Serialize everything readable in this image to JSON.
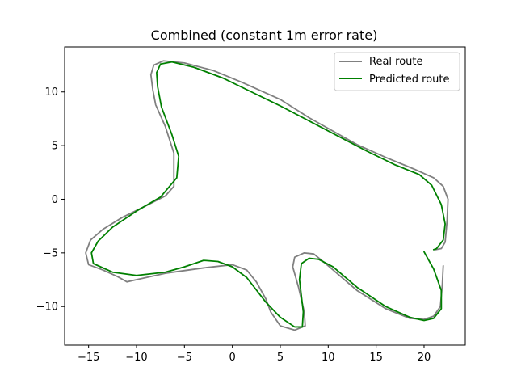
{
  "chart_data": {
    "type": "line",
    "title": "Combined (constant 1m error rate)",
    "xlabel": "",
    "ylabel": "",
    "xlim": [
      -17.5,
      24.3
    ],
    "ylim": [
      -13.6,
      14.2
    ],
    "xticks": [
      -15,
      -10,
      -5,
      0,
      5,
      10,
      15,
      20
    ],
    "yticks": [
      -10,
      -5,
      0,
      5,
      10
    ],
    "grid": false,
    "legend": "top-right",
    "series": [
      {
        "name": "Real route",
        "color": "#808080",
        "points": [
          [
            22.0,
            -6.2
          ],
          [
            21.9,
            -8.0
          ],
          [
            21.7,
            -10.0
          ],
          [
            21.0,
            -10.9
          ],
          [
            20.0,
            -11.2
          ],
          [
            18.5,
            -11.1
          ],
          [
            16.0,
            -10.2
          ],
          [
            13.0,
            -8.5
          ],
          [
            10.0,
            -6.2
          ],
          [
            8.5,
            -5.1
          ],
          [
            7.5,
            -5.0
          ],
          [
            6.5,
            -5.4
          ],
          [
            6.3,
            -6.3
          ],
          [
            6.9,
            -8.2
          ],
          [
            7.5,
            -10.5
          ],
          [
            7.6,
            -11.8
          ],
          [
            6.5,
            -12.2
          ],
          [
            5.0,
            -11.8
          ],
          [
            4.0,
            -10.5
          ],
          [
            3.5,
            -9.3
          ],
          [
            2.5,
            -7.7
          ],
          [
            1.5,
            -6.6
          ],
          [
            0.0,
            -6.1
          ],
          [
            -3.0,
            -6.4
          ],
          [
            -7.0,
            -6.9
          ],
          [
            -10.0,
            -7.5
          ],
          [
            -11.0,
            -7.7
          ],
          [
            -12.0,
            -7.2
          ],
          [
            -13.5,
            -6.6
          ],
          [
            -15.0,
            -6.1
          ],
          [
            -15.3,
            -5.0
          ],
          [
            -14.8,
            -3.8
          ],
          [
            -13.5,
            -2.8
          ],
          [
            -11.5,
            -1.7
          ],
          [
            -9.0,
            -0.6
          ],
          [
            -7.0,
            0.3
          ],
          [
            -6.1,
            1.2
          ],
          [
            -6.1,
            4.3
          ],
          [
            -7.0,
            6.8
          ],
          [
            -8.0,
            8.8
          ],
          [
            -8.3,
            10.2
          ],
          [
            -8.5,
            11.6
          ],
          [
            -8.2,
            12.5
          ],
          [
            -7.2,
            12.9
          ],
          [
            -5.0,
            12.7
          ],
          [
            -2.0,
            12.0
          ],
          [
            1.0,
            10.9
          ],
          [
            5.0,
            9.3
          ],
          [
            8.0,
            7.6
          ],
          [
            10.0,
            6.6
          ],
          [
            13.0,
            5.1
          ],
          [
            16.0,
            3.9
          ],
          [
            19.0,
            2.8
          ],
          [
            21.0,
            2.0
          ],
          [
            22.0,
            1.2
          ],
          [
            22.5,
            0.0
          ],
          [
            22.4,
            -2.0
          ],
          [
            22.2,
            -4.0
          ],
          [
            21.8,
            -4.6
          ],
          [
            21.2,
            -4.7
          ]
        ]
      },
      {
        "name": "Predicted route",
        "color": "#008000",
        "points": [
          [
            20.0,
            -4.9
          ],
          [
            21.0,
            -6.5
          ],
          [
            21.8,
            -8.5
          ],
          [
            21.8,
            -10.2
          ],
          [
            21.0,
            -11.1
          ],
          [
            20.0,
            -11.3
          ],
          [
            18.5,
            -11.0
          ],
          [
            16.0,
            -10.0
          ],
          [
            13.0,
            -8.2
          ],
          [
            10.5,
            -6.3
          ],
          [
            9.0,
            -5.6
          ],
          [
            8.0,
            -5.5
          ],
          [
            7.2,
            -6.0
          ],
          [
            7.0,
            -7.5
          ],
          [
            7.4,
            -10.5
          ],
          [
            7.3,
            -11.9
          ],
          [
            6.5,
            -11.9
          ],
          [
            5.0,
            -11.0
          ],
          [
            3.5,
            -9.6
          ],
          [
            1.5,
            -7.3
          ],
          [
            0.0,
            -6.3
          ],
          [
            -1.5,
            -5.8
          ],
          [
            -3.0,
            -5.7
          ],
          [
            -5.0,
            -6.3
          ],
          [
            -7.0,
            -6.8
          ],
          [
            -10.0,
            -7.1
          ],
          [
            -12.5,
            -6.8
          ],
          [
            -14.5,
            -6.0
          ],
          [
            -14.7,
            -5.0
          ],
          [
            -14.0,
            -3.9
          ],
          [
            -12.5,
            -2.6
          ],
          [
            -10.0,
            -1.1
          ],
          [
            -7.5,
            0.2
          ],
          [
            -5.8,
            2.0
          ],
          [
            -5.6,
            4.0
          ],
          [
            -6.3,
            6.0
          ],
          [
            -7.4,
            8.6
          ],
          [
            -7.8,
            10.5
          ],
          [
            -7.9,
            11.8
          ],
          [
            -7.5,
            12.6
          ],
          [
            -6.3,
            12.8
          ],
          [
            -4.0,
            12.3
          ],
          [
            -1.0,
            11.3
          ],
          [
            2.0,
            10.0
          ],
          [
            5.0,
            8.7
          ],
          [
            8.0,
            7.3
          ],
          [
            11.0,
            5.9
          ],
          [
            14.0,
            4.5
          ],
          [
            17.0,
            3.2
          ],
          [
            19.5,
            2.3
          ],
          [
            20.8,
            1.3
          ],
          [
            21.8,
            -0.5
          ],
          [
            22.2,
            -2.3
          ],
          [
            22.0,
            -3.8
          ],
          [
            21.3,
            -4.6
          ],
          [
            21.0,
            -4.7
          ]
        ]
      }
    ]
  }
}
